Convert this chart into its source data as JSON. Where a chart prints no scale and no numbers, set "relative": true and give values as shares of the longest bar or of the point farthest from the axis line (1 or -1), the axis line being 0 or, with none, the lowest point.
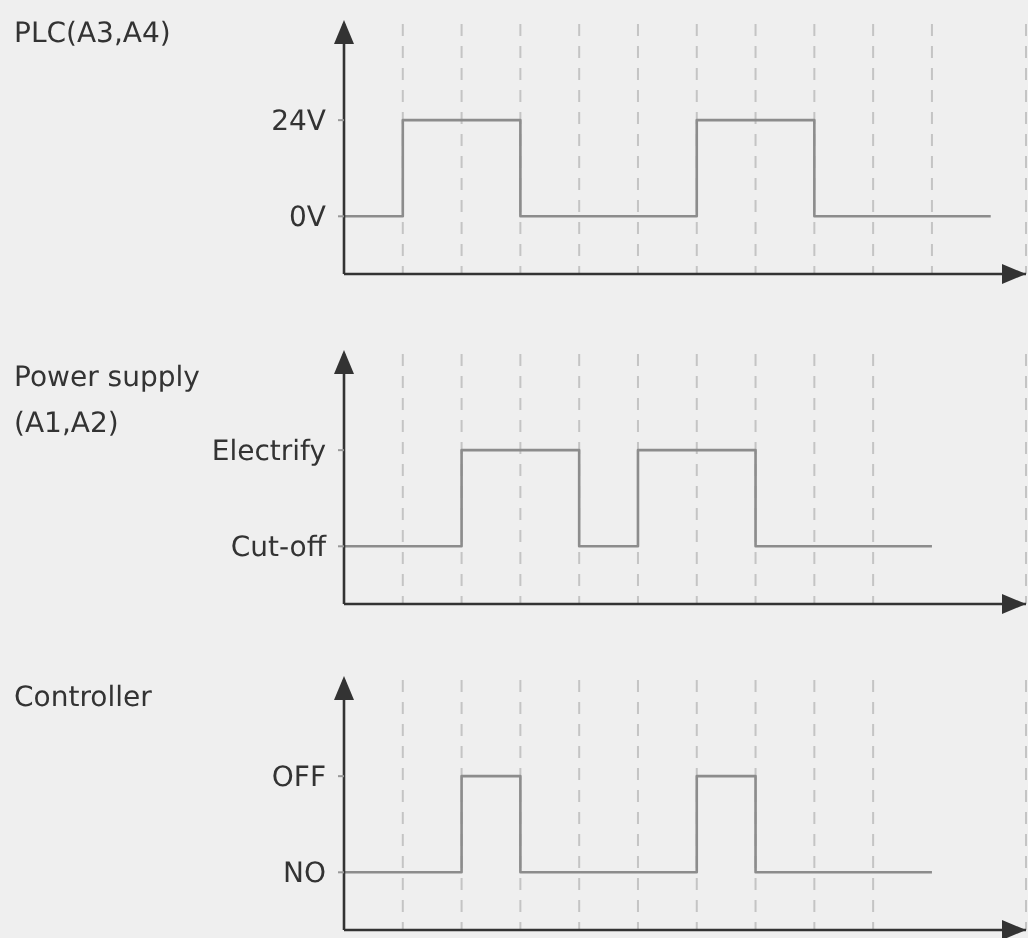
{
  "chart_data": [
    {
      "type": "step",
      "title": "PLC(A3,A4)",
      "categories": [
        null,
        null,
        null,
        null,
        null,
        null,
        null,
        null,
        null,
        null,
        null,
        null
      ],
      "series": [
        {
          "color": "#8c8c8c",
          "values": [
            0,
            24,
            24,
            0,
            0,
            0,
            24,
            24,
            0,
            0,
            0,
            0
          ]
        }
      ],
      "ylim": [
        -14.4,
        48
      ],
      "yticks": [
        {
          "value": 0,
          "label": "0V"
        },
        {
          "value": 24,
          "label": "24V"
        }
      ],
      "grid": "x",
      "tick_labels": "y"
    },
    {
      "type": "step",
      "title": "Power supply (A1,A2)",
      "categories": [
        null,
        null,
        null,
        null,
        null,
        null,
        null,
        null,
        null,
        null,
        null
      ],
      "series": [
        {
          "color": "#8c8c8c",
          "values": [
            0.375,
            0.375,
            1,
            1,
            0.375,
            1,
            1,
            0.375,
            0.375,
            0.375,
            0.375
          ]
        }
      ],
      "relative": true,
      "annotations": [
        "Cut-off",
        "Electrify"
      ],
      "grid": "x",
      "tick_labels": "y"
    },
    {
      "type": "step",
      "title": "Controller",
      "categories": [
        null,
        null,
        null,
        null,
        null,
        null,
        null,
        null,
        null,
        null,
        null
      ],
      "series": [
        {
          "color": "#8c8c8c",
          "values": [
            0.375,
            0.375,
            1,
            0.375,
            0.375,
            0.375,
            1,
            0.375,
            0.375,
            0.375,
            0.375
          ]
        }
      ],
      "relative": true,
      "annotations": [
        "NO",
        "OFF"
      ],
      "grid": "x",
      "tick_labels": "y"
    }
  ]
}
